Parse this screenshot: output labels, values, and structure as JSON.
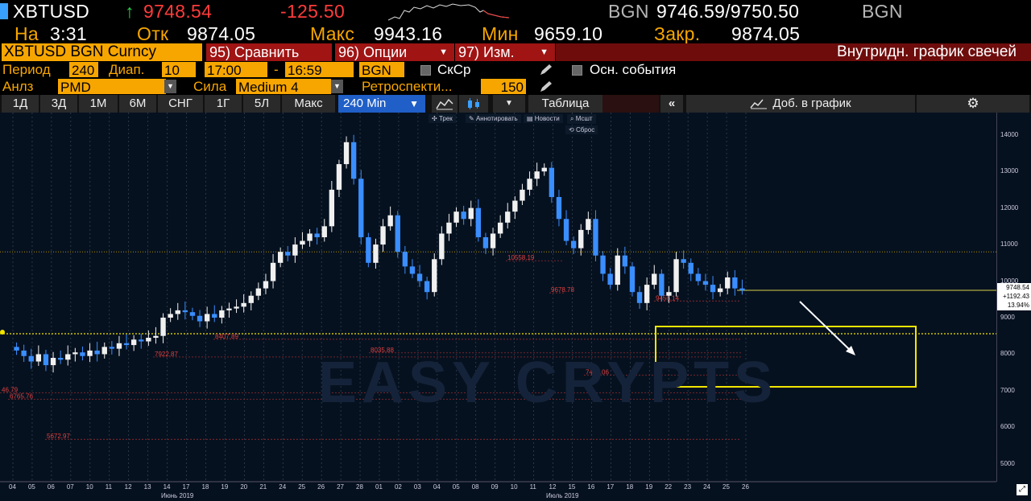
{
  "header": {
    "ticker": "XBTUSD",
    "arrow": "↑",
    "last_price": "9748.54",
    "change": "-125.50",
    "source1": "BGN",
    "bid_ask": "9746.59/9750.50",
    "source2": "BGN"
  },
  "stats": {
    "at_label": "На",
    "at_time": "3:31",
    "open_label": "Отк",
    "open_value": "9874.05",
    "high_label": "Макс",
    "high_value": "9943.16",
    "low_label": "Мин",
    "low_value": "9659.10",
    "close_label": "Закр.",
    "close_value": "9874.05"
  },
  "toolbar": {
    "security": "XBTUSD BGN Curncy",
    "compare": "95) Сравнить",
    "options": "96) Опции",
    "edit": "97) Изм.",
    "chart_title": "Внутридн. график свечей"
  },
  "params": {
    "period_label": "Период",
    "period_value": "240",
    "range_label": "Диап.",
    "range_value": "10",
    "time_from": "17:00",
    "dash": "-",
    "time_to": "16:59",
    "source": "BGN",
    "avg_label": "СкСр",
    "events_label": "Осн. события"
  },
  "analysis": {
    "anlz_label": "Анлз",
    "anlz_value": "PMD",
    "strength_label": "Сила",
    "strength_value": "Medium 4",
    "retro_label": "Ретроспекти...",
    "retro_value": "150"
  },
  "ranges": [
    "1Д",
    "3Д",
    "1М",
    "6М",
    "СНГ",
    "1Г",
    "5Л",
    "Макс"
  ],
  "interval": "240 Min",
  "table_label": "Таблица",
  "add_to_chart": "Доб. в график",
  "chart_tools": [
    "Трек",
    "Аннотировать",
    "Новости",
    "Мсшт"
  ],
  "reset_label": "Сброс",
  "watermark": "EASY CRYPTS",
  "colors": {
    "accent": "#f7a600",
    "up": "#2bd24a",
    "down": "#ff3b3b",
    "select": "#1f5fc7"
  },
  "chart_data": {
    "type": "candlestick",
    "ylim": [
      4600,
      14500
    ],
    "yticks": [
      "14000",
      "13000",
      "12000",
      "11000",
      "10000",
      "9000",
      "8000",
      "7000",
      "6000",
      "5000"
    ],
    "xticks_june": [
      "04",
      "05",
      "06",
      "07",
      "10",
      "11",
      "12",
      "13",
      "14",
      "17",
      "18",
      "19",
      "20",
      "21",
      "24",
      "25",
      "26",
      "27",
      "28"
    ],
    "xticks_july": [
      "01",
      "02",
      "03",
      "04",
      "05",
      "08",
      "09",
      "10",
      "11",
      "12",
      "15",
      "16",
      "17",
      "18",
      "19",
      "22",
      "23",
      "24",
      "25",
      "26"
    ],
    "month_labels": [
      "Июнь 2019",
      "Июль 2019"
    ],
    "price_box": [
      "9748.54",
      "+1192.43",
      "13.94%"
    ],
    "levels": [
      {
        "label": "10558.19",
        "value": 10558
      },
      {
        "label": "9678.78",
        "value": 9679
      },
      {
        "label": "9456.14",
        "value": 9456
      },
      {
        "label": "8407.89",
        "value": 8408
      },
      {
        "label": "7922.87",
        "value": 7923
      },
      {
        "label": "8035.88",
        "value": 8036
      },
      {
        "label": "7423.06",
        "value": 7423
      },
      {
        "label": "46.79",
        "value": 6947
      },
      {
        "label": "6765.76",
        "value": 6766
      },
      {
        "label": "5672.97",
        "value": 5673
      }
    ],
    "closes": [
      8100,
      7950,
      7800,
      8000,
      7700,
      7900,
      7850,
      8000,
      8050,
      7950,
      8100,
      8000,
      8200,
      8150,
      8300,
      8250,
      8400,
      8350,
      8450,
      8500,
      9000,
      9100,
      9200,
      9150,
      9050,
      8900,
      9100,
      9000,
      9200,
      9250,
      9300,
      9400,
      9600,
      9800,
      10000,
      10500,
      10800,
      10700,
      11000,
      11100,
      11300,
      11200,
      11500,
      12500,
      13200,
      13800,
      12800,
      11200,
      10500,
      11000,
      11500,
      11800,
      10800,
      10400,
      10200,
      10000,
      9700,
      10600,
      11300,
      11600,
      11900,
      11700,
      12000,
      11200,
      10900,
      11300,
      11600,
      11900,
      12200,
      12500,
      12800,
      13000,
      13100,
      12300,
      11700,
      11100,
      10900,
      11400,
      11700,
      10700,
      10200,
      9900,
      10700,
      10400,
      9700,
      9400,
      9900,
      10200,
      9600,
      9700,
      10600,
      10500,
      10200,
      10000,
      9900,
      9700,
      9800,
      10100,
      9800,
      9750
    ]
  }
}
